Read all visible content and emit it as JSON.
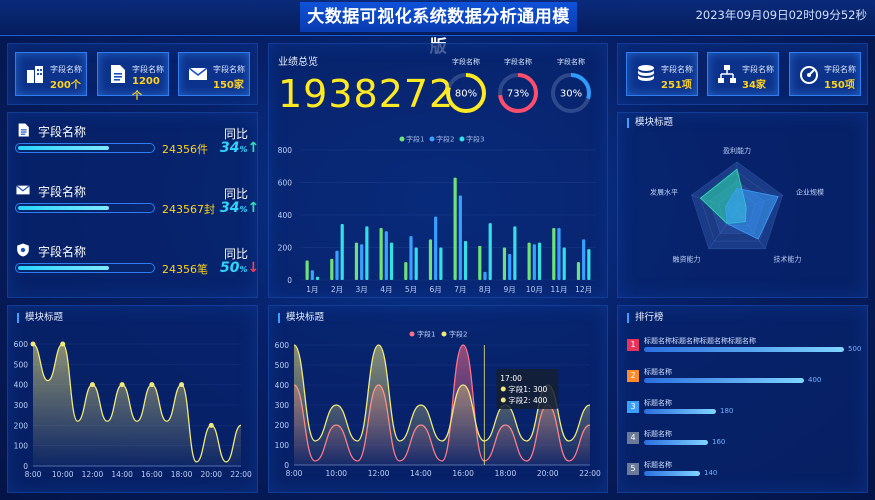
{
  "header": {
    "title": "大数据可视化系统数据分析通用模版",
    "datetime": "2023年09月09日02时09分52秒"
  },
  "top_left_stats": [
    {
      "icon": "building-icon",
      "label": "字段名称",
      "value": "200个"
    },
    {
      "icon": "document-icon",
      "label": "字段名称",
      "value": "1200个"
    },
    {
      "icon": "envelope-icon",
      "label": "字段名称",
      "value": "150家"
    }
  ],
  "top_right_stats": [
    {
      "icon": "database-icon",
      "label": "字段名称",
      "value": "251项"
    },
    {
      "icon": "hierarchy-icon",
      "label": "字段名称",
      "value": "34家"
    },
    {
      "icon": "gauge-icon",
      "label": "字段名称",
      "value": "150项"
    }
  ],
  "left_rows": [
    {
      "icon": "document-icon",
      "name": "字段名称",
      "value": "24356件",
      "compare_label": "同比",
      "pct": "34",
      "pct_unit": "%",
      "trend": "up",
      "fill": 0.48
    },
    {
      "icon": "envelope-icon",
      "name": "字段名称",
      "value": "243567封",
      "compare_label": "同比",
      "pct": "34",
      "pct_unit": "%",
      "trend": "up",
      "fill": 0.48
    },
    {
      "icon": "shield-icon",
      "name": "字段名称",
      "value": "24356笔",
      "compare_label": "同比",
      "pct": "50",
      "pct_unit": "%",
      "trend": "down",
      "fill": 0.48
    }
  ],
  "performance": {
    "title": "业绩总览",
    "total": "1938272",
    "rings": [
      {
        "label": "字段名称",
        "value": "80%",
        "percent": 80,
        "color": "#ffe923"
      },
      {
        "label": "字段名称",
        "value": "73%",
        "percent": 73,
        "color": "#ff4d6d"
      },
      {
        "label": "字段名称",
        "value": "30%",
        "percent": 30,
        "color": "#2f9bff"
      }
    ]
  },
  "radar_panel": {
    "title": "模块标题",
    "axes": [
      "盈利能力",
      "企业规模",
      "技术能力",
      "融资能力",
      "发展水平"
    ]
  },
  "bottom_left_panel": {
    "title": "模块标题"
  },
  "bottom_mid_panel": {
    "title": "模块标题"
  },
  "ranking": {
    "title": "排行榜",
    "items": [
      {
        "rank": "1",
        "name": "标题名称标题名称标题名称标题名称",
        "value": "500",
        "amount": 500,
        "badge_color": "#e8345a"
      },
      {
        "rank": "2",
        "name": "标题名称",
        "value": "400",
        "amount": 400,
        "badge_color": "#ff8a2b"
      },
      {
        "rank": "3",
        "name": "标题名称",
        "value": "180",
        "amount": 180,
        "badge_color": "#3aa0ff"
      },
      {
        "rank": "4",
        "name": "标题名称",
        "value": "160",
        "amount": 160,
        "badge_color": "#6b7a99"
      },
      {
        "rank": "5",
        "name": "标题名称",
        "value": "140",
        "amount": 140,
        "badge_color": "#6b7a99"
      }
    ]
  },
  "chart_data": [
    {
      "type": "bar",
      "legend": [
        "字段1",
        "字段2",
        "字段3"
      ],
      "colors": [
        "#6fe07a",
        "#3aa0ff",
        "#34e0e8"
      ],
      "categories": [
        "1月",
        "2月",
        "3月",
        "4月",
        "5月",
        "6月",
        "7月",
        "8月",
        "9月",
        "10月",
        "11月",
        "12月"
      ],
      "series": [
        {
          "name": "字段1",
          "values": [
            120,
            130,
            230,
            320,
            110,
            250,
            630,
            210,
            200,
            230,
            320,
            110
          ]
        },
        {
          "name": "字段2",
          "values": [
            60,
            180,
            220,
            300,
            270,
            390,
            520,
            50,
            160,
            220,
            320,
            250
          ]
        },
        {
          "name": "字段3",
          "values": [
            20,
            345,
            330,
            230,
            200,
            200,
            240,
            350,
            330,
            230,
            200,
            190
          ]
        }
      ],
      "ylim": [
        0,
        800
      ],
      "yticks": [
        0,
        200,
        400,
        600,
        800
      ]
    },
    {
      "type": "radar",
      "axes": [
        "盈利能力",
        "企业规模",
        "技术能力",
        "融资能力",
        "发展水平"
      ],
      "series": [
        {
          "values": [
            0.85,
            0.2,
            0.3,
            0.35,
            0.8
          ],
          "color": "#2fe3b0"
        },
        {
          "values": [
            0.45,
            0.9,
            0.75,
            0.35,
            0.25
          ],
          "color": "#3aa0ff"
        }
      ]
    },
    {
      "type": "area",
      "x": [
        "8:00",
        "10:00",
        "12:00",
        "14:00",
        "16:00",
        "18:00",
        "20:00",
        "22:00"
      ],
      "series": [
        {
          "values": [
            600,
            600,
            400,
            400,
            400,
            400,
            200,
            200
          ],
          "color": "#f2e87b"
        }
      ],
      "ylim": [
        0,
        600
      ],
      "yticks": [
        0,
        100,
        200,
        300,
        400,
        500,
        600
      ]
    },
    {
      "type": "area",
      "legend": [
        "字段1",
        "字段2"
      ],
      "x": [
        "8:00",
        "10:00",
        "12:00",
        "14:00",
        "16:00",
        "18:00",
        "20:00",
        "22:00"
      ],
      "series": [
        {
          "name": "字段1",
          "values": [
            400,
            200,
            400,
            200,
            600,
            200,
            300,
            200
          ],
          "color": "#ff6f8a"
        },
        {
          "name": "字段2",
          "values": [
            600,
            300,
            600,
            300,
            400,
            300,
            400,
            300
          ],
          "color": "#f2e87b"
        }
      ],
      "ylim": [
        0,
        600
      ],
      "yticks": [
        0,
        100,
        200,
        300,
        400,
        500,
        600
      ],
      "tooltip": {
        "title": "17:00",
        "rows": [
          "字段1: 300",
          "字段2: 400"
        ]
      }
    }
  ]
}
